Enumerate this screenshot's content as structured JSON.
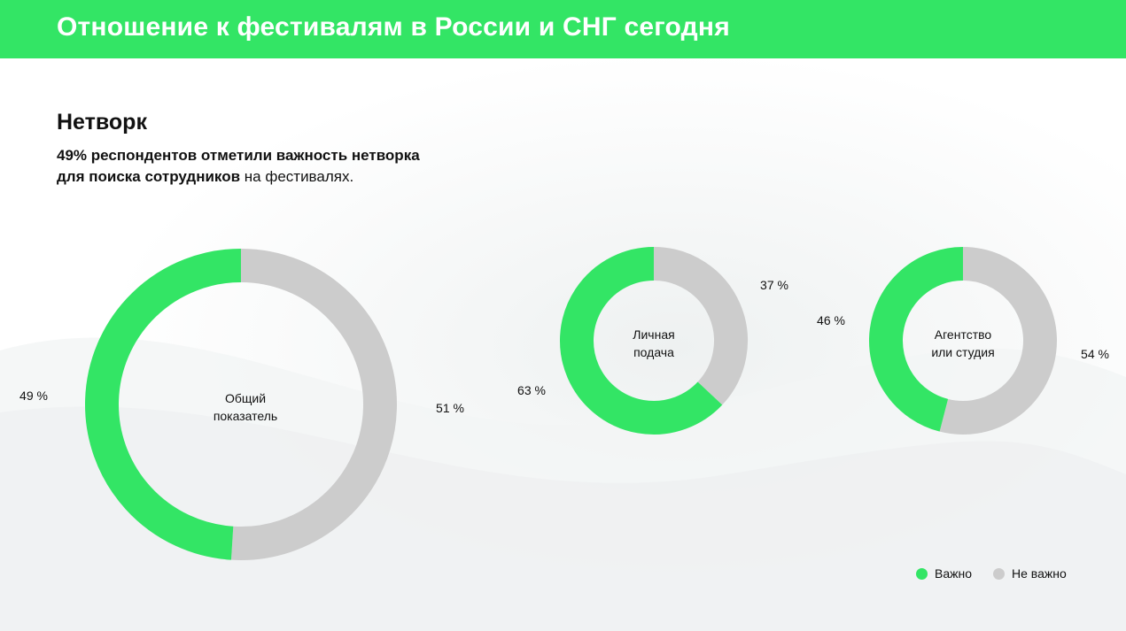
{
  "header": {
    "title": "Отношение к фестивалям в России и СНГ сегодня"
  },
  "section": {
    "title": "Нетворк",
    "subtitle_bold_1": "49% респондентов отметили важность нетворка",
    "subtitle_bold_2": "для поиска сотрудников",
    "subtitle_rest": " на фестивалях."
  },
  "colors": {
    "important": "#33e565",
    "not_important": "#cccccc",
    "header": "#33e565"
  },
  "chart_data": [
    {
      "type": "pie",
      "title": "Общий показатель",
      "categories": [
        "Важно",
        "Не важно"
      ],
      "values": [
        49,
        51
      ],
      "value_labels": [
        "49 %",
        "51 %"
      ]
    },
    {
      "type": "pie",
      "title": "Личная подача",
      "categories": [
        "Важно",
        "Не важно"
      ],
      "values": [
        63,
        37
      ],
      "value_labels": [
        "63 %",
        "37 %"
      ]
    },
    {
      "type": "pie",
      "title": "Агентство или студия",
      "categories": [
        "Важно",
        "Не важно"
      ],
      "values": [
        46,
        54
      ],
      "value_labels": [
        "46 %",
        "54 %"
      ]
    }
  ],
  "center_labels": [
    {
      "line1": "Общий",
      "line2": "показатель"
    },
    {
      "line1": "Личная",
      "line2": "подача"
    },
    {
      "line1": "Агентство",
      "line2": "или студия"
    }
  ],
  "legend": [
    {
      "label": "Важно"
    },
    {
      "label": "Не важно"
    }
  ]
}
